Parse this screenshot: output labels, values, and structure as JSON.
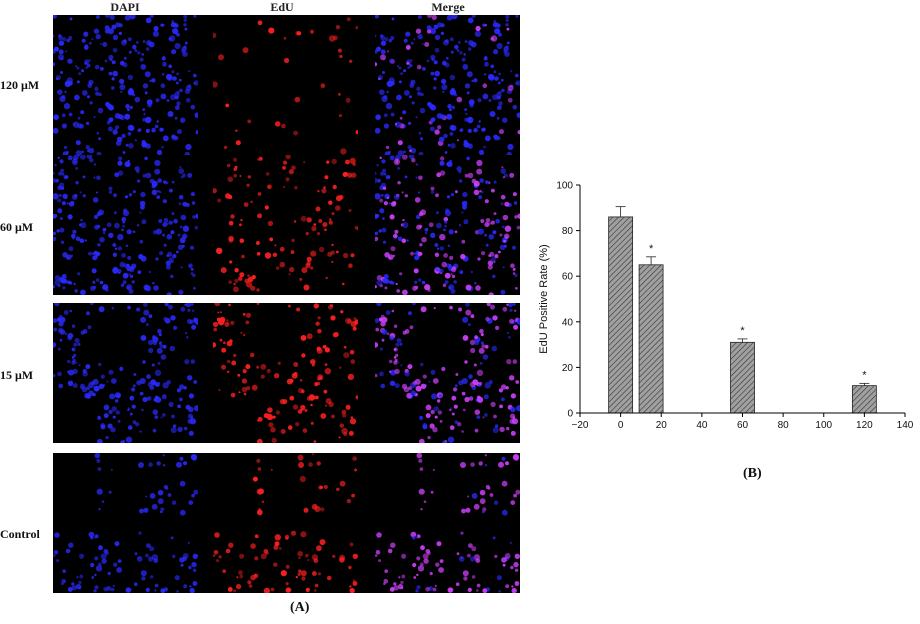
{
  "panel_a": {
    "label": "(A)",
    "columns": [
      "DAPI",
      "EdU",
      "Merge"
    ],
    "rows": [
      "120 μM",
      "60 μM",
      "15 μM",
      "Control"
    ],
    "relative_edu_density": [
      0.15,
      0.6,
      0.75,
      1.0
    ],
    "colors": {
      "dapi": "#2a2aff",
      "edu": "#ff2020",
      "merge": "#d040ff"
    }
  },
  "panel_b": {
    "label": "(B)"
  },
  "chart_data": {
    "type": "bar",
    "x": [
      0,
      15,
      60,
      120
    ],
    "values": [
      86,
      65,
      31,
      12
    ],
    "errors": [
      4.5,
      3.5,
      1.5,
      1
    ],
    "significance": [
      "",
      "*",
      "*",
      "*"
    ],
    "ylabel": "EdU Positive Rate (%)",
    "xlabel": "",
    "xlim": [
      -20,
      140
    ],
    "ylim": [
      0,
      100
    ],
    "xticks": [
      -20,
      0,
      20,
      40,
      60,
      80,
      100,
      120,
      140
    ],
    "yticks": [
      0,
      20,
      40,
      60,
      80,
      100
    ],
    "bar_fill": "#a0a0a0",
    "hatch": "diagonal",
    "grid": false
  }
}
